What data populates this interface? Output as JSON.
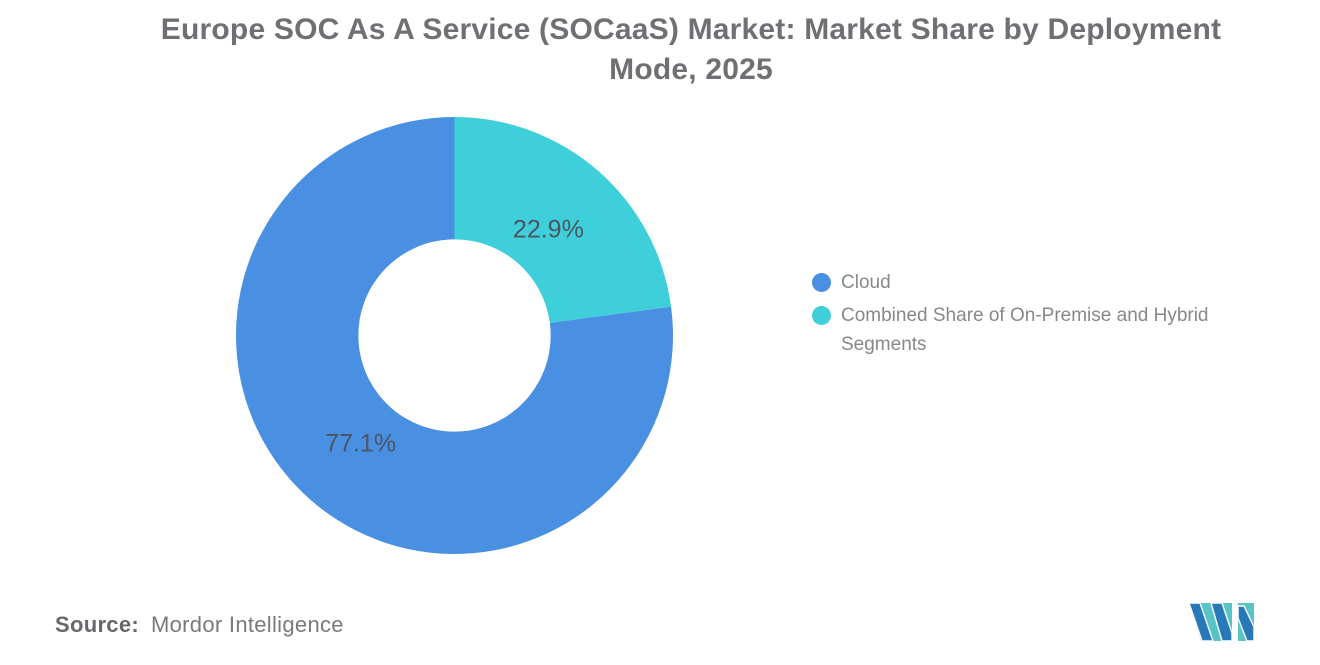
{
  "title": {
    "line1": "Europe SOC As A Service (SOCaaS) Market: Market Share by Deployment",
    "line2": "Mode, 2025"
  },
  "chart_data": {
    "type": "pie",
    "subtype": "donut",
    "title": "Europe SOC As A Service (SOCaaS) Market: Market Share by Deployment Mode, 2025",
    "segments": [
      {
        "label": "Cloud",
        "value": 77.1,
        "display": "77.1%",
        "color": "#4a90e2"
      },
      {
        "label": "Combined Share of On-Premise and Hybrid Segments",
        "value": 22.9,
        "display": "22.9%",
        "color": "#3ecfda"
      }
    ],
    "hole_ratio": 0.44,
    "start_angle_deg": -90,
    "direction": "clockwise",
    "label_color": "#4a5660",
    "legend_position": "right",
    "grid": false
  },
  "source": {
    "label": "Source:",
    "value": "Mordor Intelligence"
  },
  "logo": {
    "name": "Mordor Intelligence logo mark",
    "teal": "#59c4c6",
    "blue": "#2979b8"
  }
}
